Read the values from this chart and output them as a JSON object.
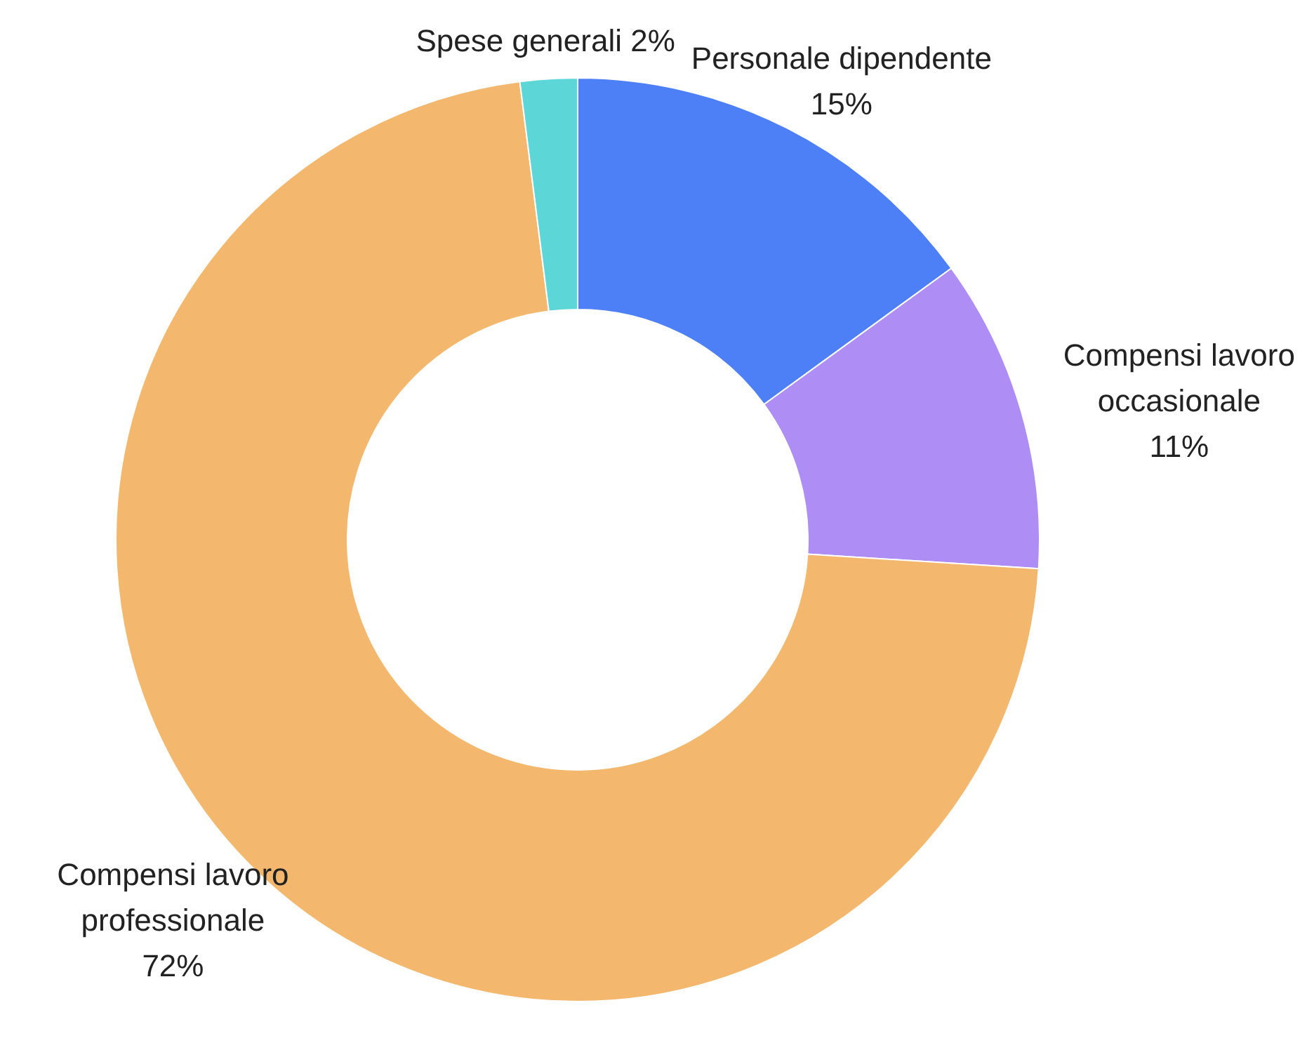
{
  "chart_data": {
    "type": "donut",
    "categories": [
      "Personale dipendente",
      "Compensi lavoro occasionale",
      "Compensi lavoro professionale",
      "Spese generali"
    ],
    "values": [
      15,
      11,
      72,
      2
    ],
    "colors": [
      "#4d80f7",
      "#ae8ef5",
      "#f3b86e",
      "#5cd6d6"
    ],
    "value_labels": [
      "15%",
      "11%",
      "72%",
      "2%"
    ]
  }
}
